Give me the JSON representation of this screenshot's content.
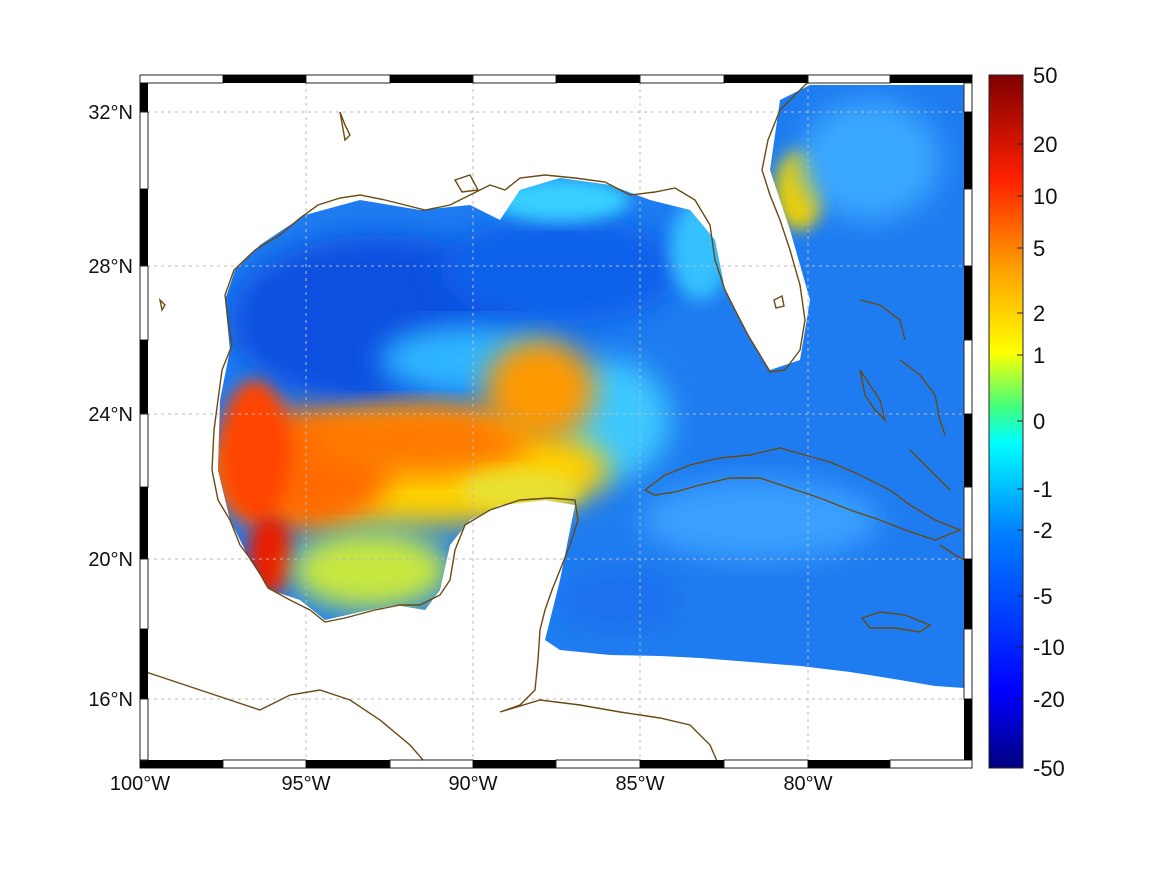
{
  "map": {
    "lat_labels": [
      "32°N",
      "28°N",
      "24°N",
      "20°N",
      "16°N"
    ],
    "lon_labels": [
      "100°W",
      "95°W",
      "90°W",
      "85°W",
      "80°W"
    ],
    "lat_values": [
      32,
      28,
      24,
      20,
      16
    ],
    "lon_values": [
      -100,
      -95,
      -90,
      -85,
      -80
    ],
    "extent": {
      "lon_min": -100,
      "lon_max": -75,
      "lat_min": 14.3,
      "lat_max": 33
    },
    "grid": true,
    "frame_style": "alternating black-white border"
  },
  "colorbar": {
    "labels": [
      "50",
      "20",
      "10",
      "5",
      "2",
      "1",
      "0",
      "-1",
      "-2",
      "-5",
      "-10",
      "-20",
      "-50"
    ],
    "colormap": "jet",
    "scale": "symmetric log-like"
  },
  "colors": {
    "coastline": "#6b4a12",
    "grid": "#bbbbbb",
    "ocean_background": "#1e7cf0"
  }
}
